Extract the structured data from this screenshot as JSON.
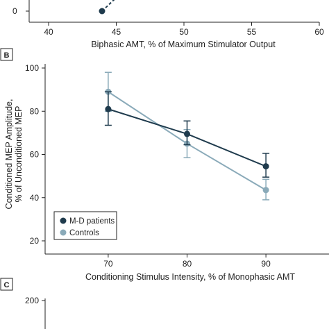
{
  "panel_a": {
    "xlabel": "Biphasic AMT, % of Maximum Stimulator Output",
    "xticks": [
      "40",
      "45",
      "50",
      "55",
      "60"
    ],
    "yticks": [
      "0"
    ],
    "xlim": [
      40,
      60
    ],
    "point": {
      "x": 44,
      "y": 0
    },
    "colors": {
      "line": "#1f3b4d"
    }
  },
  "panel_b": {
    "label": "B",
    "chart_data": {
      "type": "line",
      "xlabel": "Conditioning Stimulus Intensity, % of Monophasic AMT",
      "ylabel": [
        "Conditioned MEP Amplitude,",
        "% of Unconditioned MEP"
      ],
      "categories": [
        "70",
        "80",
        "90"
      ],
      "x": [
        70,
        80,
        90
      ],
      "xlim": [
        62,
        98
      ],
      "ylim": [
        20,
        100
      ],
      "yticks": [
        "20",
        "40",
        "60",
        "80",
        "100"
      ],
      "legend_position": "bottom-left",
      "series": [
        {
          "name": "M-D patients",
          "color": "#1f3b4d",
          "values": [
            81,
            69.5,
            54.5
          ],
          "err_low": [
            73.5,
            64.5,
            49.5
          ],
          "err_high": [
            89,
            75.5,
            60.5
          ]
        },
        {
          "name": "Controls",
          "color": "#8aaab9",
          "values": [
            89,
            65,
            43.5
          ],
          "err_low": [
            80,
            58.5,
            39
          ],
          "err_high": [
            98,
            71.5,
            48.5
          ]
        }
      ]
    }
  },
  "panel_c": {
    "label": "C",
    "yticks": [
      "200"
    ]
  }
}
